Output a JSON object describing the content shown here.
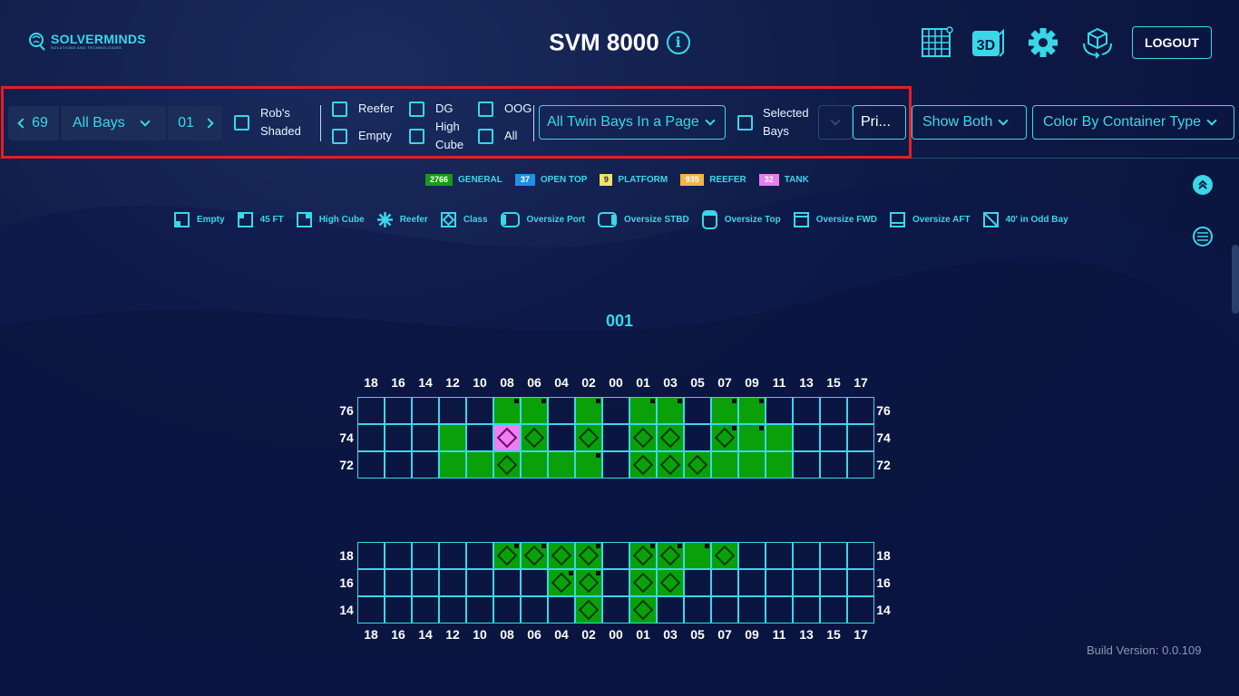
{
  "header": {
    "logo_text": "SOLVERMINDS",
    "logo_sub": "SOLUTIONS AND TECHNOLOGIES",
    "title": "SVM 8000",
    "icons": [
      "grid-icon",
      "3d-view-icon",
      "settings-gear-icon",
      "cube-rotate-icon"
    ],
    "icon_3d_label": "3D",
    "logout_label": "LOGOUT"
  },
  "toolbar": {
    "voyage": "69",
    "bay_select": "All Bays",
    "bay_number": "01",
    "robs_shaded": "Rob's Shaded",
    "reefer": "Reefer",
    "empty": "Empty",
    "dg": "DG",
    "high_cube": "High Cube",
    "oog": "OOG",
    "all": "All",
    "page_mode": "All Twin Bays In a Page",
    "selected_bays": "Selected Bays",
    "print": "Pri...",
    "show_both": "Show Both",
    "color_by": "Color By Container Type"
  },
  "type_legend": [
    {
      "count": "2766",
      "label": "GENERAL",
      "color": "#1a9a1a"
    },
    {
      "count": "37",
      "label": "OPEN TOP",
      "color": "#1e90e8"
    },
    {
      "count": "9",
      "label": "PLATFORM",
      "color": "#f0e36a"
    },
    {
      "count": "935",
      "label": "REEFER",
      "color": "#f3b44a"
    },
    {
      "count": "32",
      "label": "TANK",
      "color": "#e67ef0"
    }
  ],
  "symbol_legend": [
    "Empty",
    "45 FT",
    "High Cube",
    "Reefer",
    "Class",
    "Oversize Port",
    "Oversize STBD",
    "Oversize Top",
    "Oversize FWD",
    "Oversize AFT",
    "40' in Odd Bay"
  ],
  "bay": {
    "title": "001",
    "columns": [
      "18",
      "16",
      "14",
      "12",
      "10",
      "08",
      "06",
      "04",
      "02",
      "00",
      "01",
      "03",
      "05",
      "07",
      "09",
      "11",
      "13",
      "15",
      "17"
    ],
    "deck_rows": [
      "76",
      "74",
      "72"
    ],
    "hold_rows": [
      "18",
      "16",
      "14"
    ],
    "deck_cells": [
      [
        0,
        0,
        0,
        0,
        0,
        "gt",
        "gt",
        0,
        "gt",
        0,
        "gt",
        "gt",
        0,
        "gt",
        "gt",
        0,
        0,
        0,
        0
      ],
      [
        0,
        0,
        0,
        "g",
        0,
        "tkd",
        "gd",
        0,
        "gd",
        0,
        "gd",
        "gd",
        0,
        "gdt",
        "gt",
        "g",
        0,
        0,
        0
      ],
      [
        0,
        0,
        0,
        "g",
        "g",
        "gd",
        "g",
        "g",
        "gt",
        0,
        "gd",
        "gd",
        "gd",
        "g",
        "g",
        "g",
        0,
        0,
        0
      ]
    ],
    "hold_cells": [
      [
        0,
        0,
        0,
        0,
        0,
        "gdt",
        "gdt",
        "gd",
        "gdt",
        0,
        "gdt",
        "gdt",
        "gt",
        "gd",
        0,
        0,
        0,
        0,
        0
      ],
      [
        0,
        0,
        0,
        0,
        0,
        0,
        0,
        "gdt",
        "gdt",
        0,
        "gd",
        "gd",
        0,
        0,
        0,
        0,
        0,
        0,
        0
      ],
      [
        0,
        0,
        0,
        0,
        0,
        0,
        0,
        0,
        "gd",
        0,
        "gd",
        0,
        0,
        0,
        0,
        0,
        0,
        0,
        0
      ]
    ]
  },
  "build_version": "Build Version: 0.0.109"
}
